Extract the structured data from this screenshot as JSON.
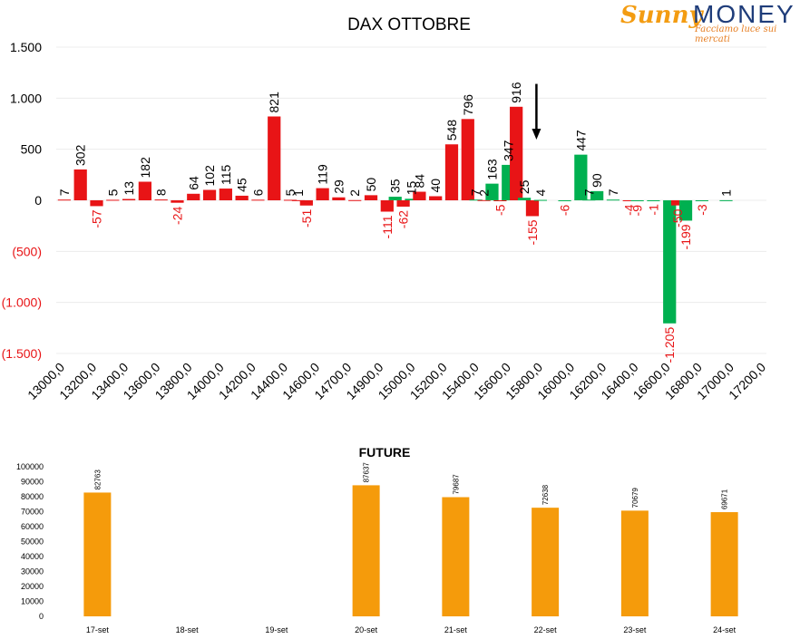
{
  "logo": {
    "brand_a": "Sunny",
    "brand_b": "MONEY",
    "tagline": "Facciamo luce sui mercati"
  },
  "chart_data": [
    {
      "type": "bar",
      "title": "DAX OTTOBRE",
      "ylim": [
        -1500,
        1500
      ],
      "y_ticks": [
        1500,
        1000,
        500,
        0,
        -500,
        -1000,
        -1500
      ],
      "y_tick_labels": [
        "1.500",
        "1.000",
        "500",
        "0",
        "(500)",
        "(1.000)",
        "(1.500)"
      ],
      "x_tick_labels": [
        "13000,0",
        "13200,0",
        "13400,0",
        "13600,0",
        "13800,0",
        "14000,0",
        "14200,0",
        "14400,0",
        "14600,0",
        "14700,0",
        "14900,0",
        "15000,0",
        "15200,0",
        "15400,0",
        "15600,0",
        "15800,0",
        "16000,0",
        "16200,0",
        "16400,0",
        "16600,0",
        "16800,0",
        "17000,0",
        "17200,0"
      ],
      "grid": true,
      "colors": {
        "red": "#e81416",
        "green": "#00b050",
        "negative_label": "#e81416",
        "positive_label": "#000000"
      },
      "series": [
        {
          "values": [
            {
              "p": 0,
              "v": 7,
              "c": "red"
            },
            {
              "p": 1,
              "v": 302,
              "c": "red"
            },
            {
              "p": 2,
              "v": -57,
              "c": "red"
            },
            {
              "p": 3,
              "v": 5,
              "c": "red"
            },
            {
              "p": 4,
              "v": 13,
              "c": "red"
            },
            {
              "p": 5,
              "v": 182,
              "c": "red"
            },
            {
              "p": 6,
              "v": 8,
              "c": "red"
            },
            {
              "p": 7,
              "v": -24,
              "c": "red"
            },
            {
              "p": 8,
              "v": 64,
              "c": "red"
            },
            {
              "p": 9,
              "v": 102,
              "c": "red"
            },
            {
              "p": 10,
              "v": 115,
              "c": "red"
            },
            {
              "p": 11,
              "v": 45,
              "c": "red"
            },
            {
              "p": 12,
              "v": 6,
              "c": "red"
            },
            {
              "p": 13,
              "v": 821,
              "c": "red"
            },
            {
              "p": 14,
              "v": 5,
              "c": "red"
            },
            {
              "p": 14.5,
              "v": 1,
              "c": "red"
            },
            {
              "p": 15,
              "v": -51,
              "c": "red"
            },
            {
              "p": 16,
              "v": 119,
              "c": "red"
            },
            {
              "p": 17,
              "v": 29,
              "c": "red"
            },
            {
              "p": 18,
              "v": 2,
              "c": "red"
            },
            {
              "p": 19,
              "v": 50,
              "c": "red"
            },
            {
              "p": 20,
              "v": -111,
              "c": "red"
            },
            {
              "p": 20.5,
              "v": 35,
              "c": "green"
            },
            {
              "p": 21,
              "v": -62,
              "c": "red"
            },
            {
              "p": 21.5,
              "v": 15,
              "c": "green"
            },
            {
              "p": 22,
              "v": 84,
              "c": "red"
            },
            {
              "p": 23,
              "v": 40,
              "c": "red"
            },
            {
              "p": 24,
              "v": 548,
              "c": "red"
            },
            {
              "p": 25,
              "v": 796,
              "c": "red"
            },
            {
              "p": 25.5,
              "v": 7,
              "c": "green"
            },
            {
              "p": 26,
              "v": 2,
              "c": "red"
            },
            {
              "p": 26.5,
              "v": 163,
              "c": "green"
            },
            {
              "p": 27,
              "v": -5,
              "c": "red"
            },
            {
              "p": 27.5,
              "v": 347,
              "c": "green"
            },
            {
              "p": 28,
              "v": 916,
              "c": "red"
            },
            {
              "p": 28.5,
              "v": 25,
              "c": "green"
            },
            {
              "p": 29,
              "v": -155,
              "c": "red"
            },
            {
              "p": 29.5,
              "v": 4,
              "c": "green"
            },
            {
              "p": 31,
              "v": -6,
              "c": "green"
            },
            {
              "p": 32,
              "v": 447,
              "c": "green"
            },
            {
              "p": 32.5,
              "v": 7,
              "c": "green"
            },
            {
              "p": 33,
              "v": 90,
              "c": "green"
            },
            {
              "p": 34,
              "v": 7,
              "c": "green"
            },
            {
              "p": 35,
              "v": -4,
              "c": "red"
            },
            {
              "p": 35.5,
              "v": -9,
              "c": "green"
            },
            {
              "p": 36.5,
              "v": -1,
              "c": "green"
            },
            {
              "p": 37.5,
              "v": -1205,
              "c": "green"
            },
            {
              "p": 38,
              "v": -50,
              "c": "red"
            },
            {
              "p": 38.5,
              "v": -199,
              "c": "green"
            },
            {
              "p": 39.5,
              "v": -3,
              "c": "green"
            },
            {
              "p": 41,
              "v": 1,
              "c": "green"
            }
          ]
        }
      ],
      "annotations": [
        {
          "type": "arrow-down",
          "at": 29.25,
          "from": 1140,
          "to": 630
        }
      ]
    },
    {
      "type": "bar",
      "title": "FUTURE",
      "categories": [
        "17-set",
        "18-set",
        "19-set",
        "20-set",
        "21-set",
        "22-set",
        "23-set",
        "24-set"
      ],
      "values": [
        82763,
        null,
        null,
        87637,
        79687,
        72638,
        70679,
        69671
      ],
      "data_labels": [
        "82763",
        "",
        "",
        "87637",
        "79687",
        "72638",
        "70679",
        "69671"
      ],
      "ylim": [
        0,
        100000
      ],
      "y_ticks": [
        0,
        10000,
        20000,
        30000,
        40000,
        50000,
        60000,
        70000,
        80000,
        90000,
        100000
      ],
      "y_tick_labels": [
        "0",
        "10000",
        "20000",
        "30000",
        "40000",
        "50000",
        "60000",
        "70000",
        "80000",
        "90000",
        "100000"
      ],
      "bar_color": "#f59b0b",
      "grid": false
    }
  ]
}
